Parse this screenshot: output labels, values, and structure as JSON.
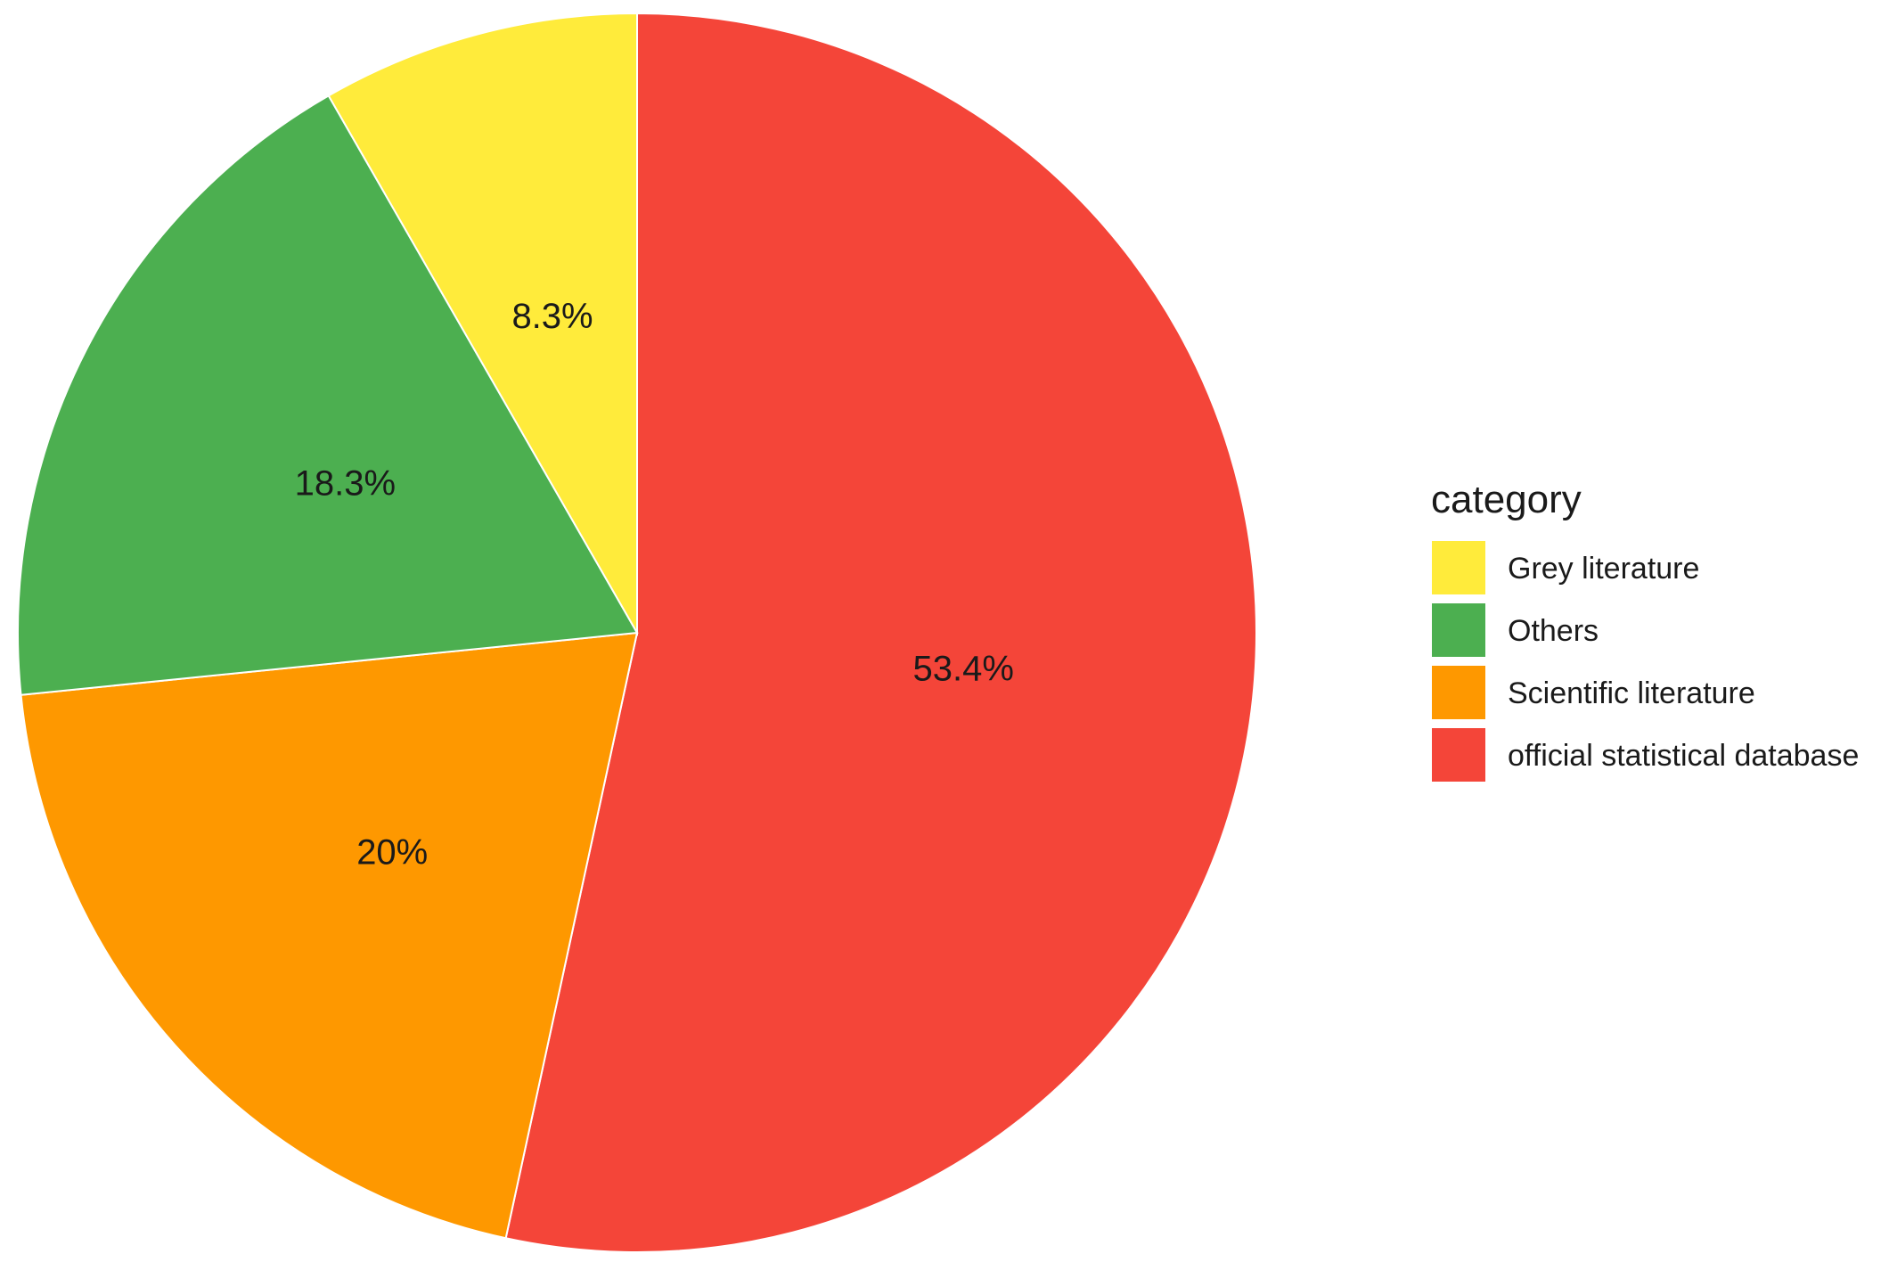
{
  "chart_data": {
    "type": "pie",
    "legend_title": "category",
    "legend_position": "right",
    "start": "top",
    "direction": "clockwise",
    "slices": [
      {
        "category": "official statistical database",
        "value": 53.4,
        "label": "53.4%",
        "color": "#F44539"
      },
      {
        "category": "Scientific literature",
        "value": 20,
        "label": "20%",
        "color": "#FE9800"
      },
      {
        "category": "Others",
        "value": 18.3,
        "label": "18.3%",
        "color": "#4CAF50"
      },
      {
        "category": "Grey literature",
        "value": 8.3,
        "label": "8.3%",
        "color": "#FFEB3B"
      }
    ],
    "legend_order": [
      "Grey literature",
      "Others",
      "Scientific literature",
      "official statistical database"
    ]
  }
}
